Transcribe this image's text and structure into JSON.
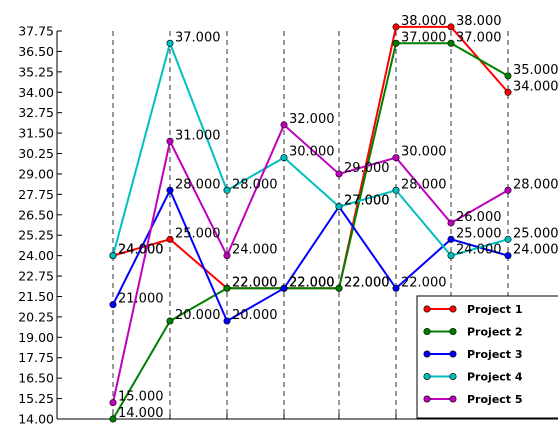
{
  "chart_data": {
    "type": "line",
    "x": [
      1,
      2,
      3,
      4,
      5,
      6,
      7,
      8
    ],
    "ylim": [
      14.0,
      37.75
    ],
    "yticks": [
      "14.00",
      "15.25",
      "16.50",
      "17.75",
      "19.00",
      "20.25",
      "21.50",
      "22.75",
      "24.00",
      "25.25",
      "26.50",
      "27.75",
      "29.00",
      "30.25",
      "31.50",
      "32.75",
      "34.00",
      "35.25",
      "36.50",
      "37.75"
    ],
    "grid": "vertical dashed",
    "legend_position": "lower-right",
    "series": [
      {
        "name": "Project 1",
        "color": "#ff0000",
        "values": [
          24,
          25,
          22,
          22,
          22,
          38,
          38,
          34
        ]
      },
      {
        "name": "Project 2",
        "color": "#008000",
        "values": [
          14,
          20,
          22,
          22,
          22,
          37,
          37,
          35
        ]
      },
      {
        "name": "Project 3",
        "color": "#0000ff",
        "values": [
          21,
          28,
          20,
          22,
          27,
          22,
          25,
          24
        ]
      },
      {
        "name": "Project 4",
        "color": "#00bfbf",
        "values": [
          24,
          37,
          28,
          30,
          27,
          28,
          24,
          25
        ]
      },
      {
        "name": "Project 5",
        "color": "#bf00bf",
        "values": [
          15,
          31,
          24,
          32,
          29,
          30,
          26,
          28
        ]
      }
    ]
  }
}
